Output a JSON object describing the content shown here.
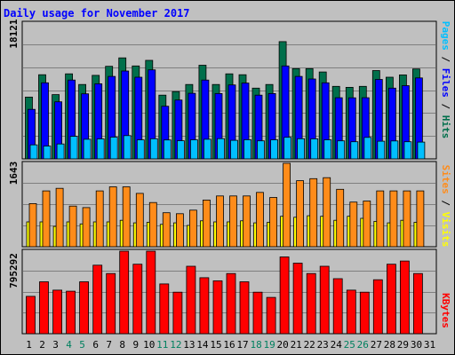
{
  "title": "Daily usage for November 2017",
  "chart_data": [
    {
      "type": "bar",
      "panel": "pages-files-hits",
      "categories": [
        "1",
        "2",
        "3",
        "4",
        "5",
        "6",
        "7",
        "8",
        "9",
        "10",
        "11",
        "12",
        "13",
        "14",
        "15",
        "16",
        "17",
        "18",
        "19",
        "20",
        "21",
        "22",
        "23",
        "24",
        "25",
        "26",
        "27",
        "28",
        "29",
        "30",
        "31"
      ],
      "ymax_label": "18121",
      "ylim": [
        0,
        18121
      ],
      "right_labels": [
        "Pages",
        "Files",
        "Hits"
      ],
      "series": [
        {
          "name": "Hits",
          "color": "#006f4b",
          "values": [
            8240,
            11230,
            8580,
            11350,
            9920,
            11150,
            12350,
            13480,
            12400,
            13150,
            8500,
            8980,
            9920,
            12500,
            9920,
            11350,
            11230,
            9440,
            9920,
            15650,
            12050,
            12050,
            11590,
            9680,
            9550,
            9680,
            11780,
            10900,
            11200,
            12000,
            0
          ]
        },
        {
          "name": "Files",
          "color": "#0000ff",
          "values": [
            6610,
            10150,
            7610,
            10520,
            8680,
            10020,
            11000,
            11730,
            10900,
            11880,
            7020,
            7850,
            8750,
            10520,
            8720,
            9870,
            10120,
            8500,
            8720,
            12400,
            11000,
            10660,
            10150,
            8160,
            8150,
            8160,
            10600,
            9440,
            9770,
            10800,
            0
          ]
        },
        {
          "name": "Pages",
          "color": "#00bfff",
          "values": [
            1870,
            1700,
            1990,
            3010,
            2620,
            2660,
            2900,
            3100,
            2530,
            2690,
            2520,
            2420,
            2550,
            2620,
            2700,
            2480,
            2560,
            2400,
            2550,
            2880,
            2690,
            2680,
            2550,
            2400,
            2290,
            2870,
            2360,
            2390,
            2290,
            2240,
            0
          ]
        }
      ]
    },
    {
      "type": "bar",
      "panel": "sites-visits",
      "categories": [
        "1",
        "2",
        "3",
        "4",
        "5",
        "6",
        "7",
        "8",
        "9",
        "10",
        "11",
        "12",
        "13",
        "14",
        "15",
        "16",
        "17",
        "18",
        "19",
        "20",
        "21",
        "22",
        "23",
        "24",
        "25",
        "26",
        "27",
        "28",
        "29",
        "30",
        "31"
      ],
      "ymax_label": "1643",
      "ylim": [
        0,
        1643
      ],
      "right_labels": [
        "Sites",
        "Visits"
      ],
      "series": [
        {
          "name": "Visits",
          "color": "#ffff00",
          "values": [
            490,
            490,
            400,
            490,
            450,
            490,
            490,
            520,
            470,
            480,
            440,
            470,
            420,
            510,
            490,
            490,
            510,
            470,
            480,
            600,
            580,
            610,
            600,
            520,
            600,
            560,
            500,
            470,
            520,
            480,
            0
          ]
        },
        {
          "name": "Sites",
          "color": "#ff8c1a",
          "values": [
            850,
            1100,
            1150,
            800,
            770,
            1100,
            1180,
            1180,
            1050,
            870,
            670,
            650,
            720,
            920,
            1000,
            1000,
            1000,
            1070,
            970,
            1643,
            1300,
            1340,
            1360,
            1130,
            880,
            900,
            1100,
            1100,
            1100,
            1100,
            0
          ]
        }
      ]
    },
    {
      "type": "bar",
      "panel": "kbytes",
      "categories": [
        "1",
        "2",
        "3",
        "4",
        "5",
        "6",
        "7",
        "8",
        "9",
        "10",
        "11",
        "12",
        "13",
        "14",
        "15",
        "16",
        "17",
        "18",
        "19",
        "20",
        "21",
        "22",
        "23",
        "24",
        "25",
        "26",
        "27",
        "28",
        "29",
        "30",
        "31"
      ],
      "ymax_label": "795292",
      "ylim": [
        0,
        795292
      ],
      "right_labels": [
        "KBytes"
      ],
      "series": [
        {
          "name": "KBytes",
          "color": "#ff0000",
          "values": [
            360000,
            500000,
            420000,
            410000,
            500000,
            660000,
            580000,
            795292,
            670000,
            795292,
            480000,
            400000,
            650000,
            540000,
            510000,
            580000,
            500000,
            400000,
            350000,
            740000,
            680000,
            580000,
            650000,
            530000,
            420000,
            400000,
            520000,
            670000,
            700000,
            580000,
            0
          ]
        }
      ]
    }
  ]
}
